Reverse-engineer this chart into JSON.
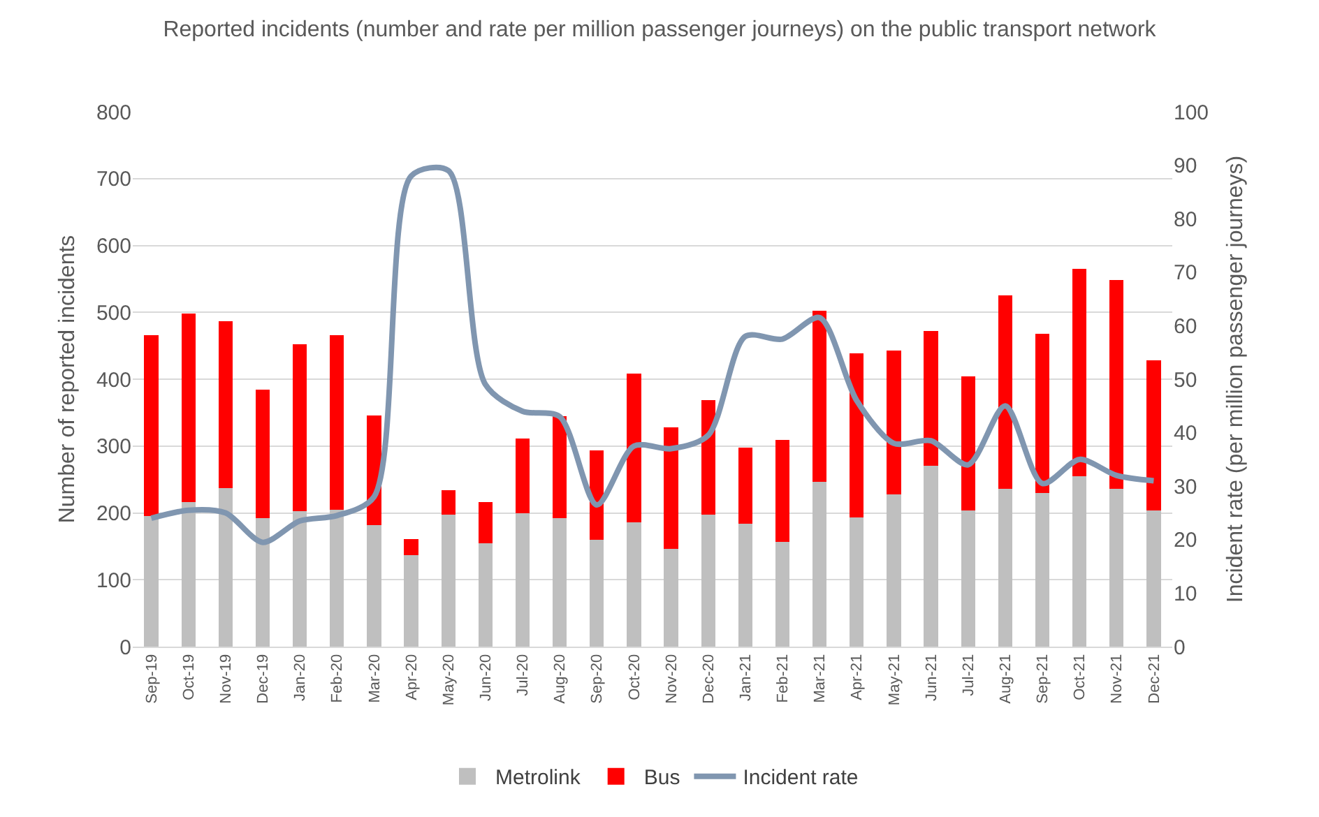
{
  "chart_data": {
    "type": "bar",
    "title": "Reported incidents (number and rate per million passenger journeys) on the public transport network",
    "ylabel": "Number of reported incidents",
    "y2label": "Incident rate (per million passenger journeys)",
    "categories": [
      "Sep-19",
      "Oct-19",
      "Nov-19",
      "Dec-19",
      "Jan-20",
      "Feb-20",
      "Mar-20",
      "Apr-20",
      "May-20",
      "Jun-20",
      "Jul-20",
      "Aug-20",
      "Sep-20",
      "Oct-20",
      "Nov-20",
      "Dec-20",
      "Jan-21",
      "Feb-21",
      "Mar-21",
      "Apr-21",
      "May-21",
      "Jun-21",
      "Jul-21",
      "Aug-21",
      "Sep-21",
      "Oct-21",
      "Nov-21",
      "Dec-21"
    ],
    "stacked": true,
    "series": [
      {
        "name": "Metrolink",
        "color": "#bfbfbf",
        "values": [
          195,
          216,
          237,
          192,
          203,
          205,
          182,
          137,
          197,
          155,
          200,
          192,
          160,
          186,
          146,
          197,
          184,
          157,
          246,
          193,
          228,
          270,
          204,
          236,
          230,
          255,
          236,
          204
        ]
      },
      {
        "name": "Bus",
        "color": "#ff0000",
        "values": [
          271,
          282,
          250,
          192,
          249,
          261,
          164,
          24,
          37,
          61,
          111,
          153,
          133,
          222,
          182,
          172,
          114,
          152,
          256,
          246,
          215,
          202,
          200,
          289,
          238,
          310,
          312,
          224
        ]
      },
      {
        "name": "Incident rate",
        "type": "line",
        "axis": "y2",
        "color": "#8096b0",
        "values": [
          24,
          25.5,
          25,
          19.5,
          23.5,
          24.5,
          28,
          88,
          89,
          49,
          44,
          43,
          26.5,
          37.5,
          37,
          39.5,
          58,
          57.5,
          61.5,
          46,
          38,
          38.5,
          34,
          45,
          30.5,
          35,
          32,
          31
        ]
      }
    ],
    "ylim": [
      0,
      800
    ],
    "yticks": [
      0,
      100,
      200,
      300,
      400,
      500,
      600,
      700,
      800
    ],
    "y2lim": [
      0,
      100
    ],
    "y2ticks": [
      0,
      10,
      20,
      30,
      40,
      50,
      60,
      70,
      80,
      90,
      100
    ],
    "grid": "y",
    "legend": "bottom",
    "marker": "none",
    "line_style": "solid"
  }
}
